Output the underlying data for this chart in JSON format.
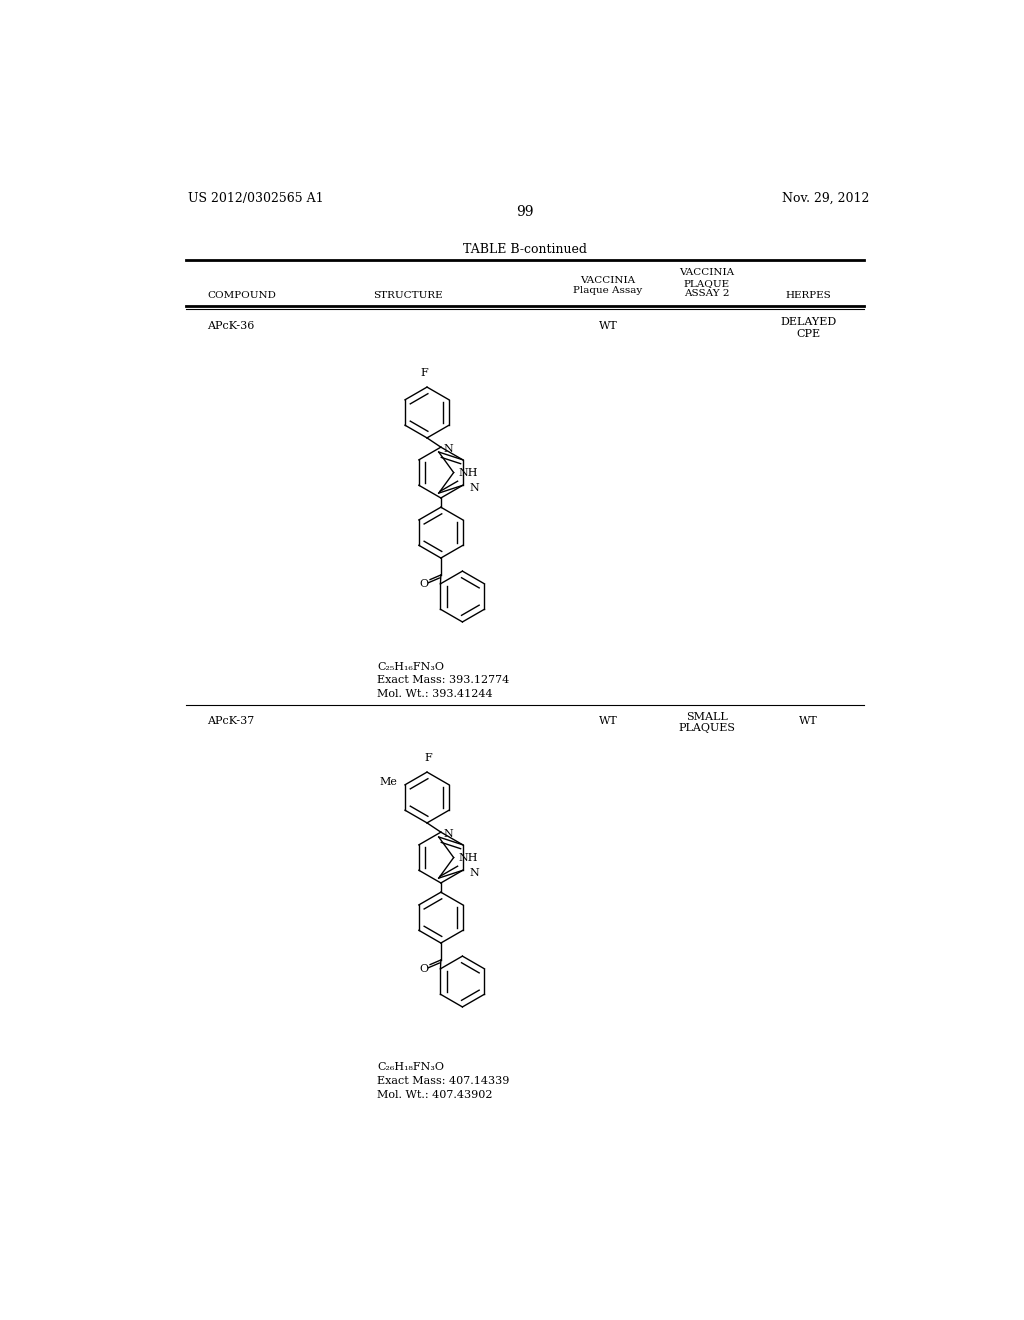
{
  "page_number": "99",
  "patent_number": "US 2012/0302565 A1",
  "patent_date": "Nov. 29, 2012",
  "table_title": "TABLE B-continued",
  "row1": {
    "compound": "APcK-36",
    "vaccinia": "WT",
    "vaccinia2": "",
    "herpes1": "DELAYED",
    "herpes2": "CPE",
    "formula": "C₂₅H₁₆FN₃O",
    "exact_mass": "Exact Mass: 393.12774",
    "mol_wt": "Mol. Wt.: 393.41244"
  },
  "row2": {
    "compound": "APcK-37",
    "vaccinia": "WT",
    "vaccinia2a": "SMALL",
    "vaccinia2b": "PLAQUES",
    "herpes": "WT",
    "formula": "C₂₆H₁₈FN₃O",
    "exact_mass": "Exact Mass: 407.14339",
    "mol_wt": "Mol. Wt.: 407.43902"
  },
  "bg_color": "#ffffff",
  "text_color": "#000000",
  "line_color": "#000000"
}
